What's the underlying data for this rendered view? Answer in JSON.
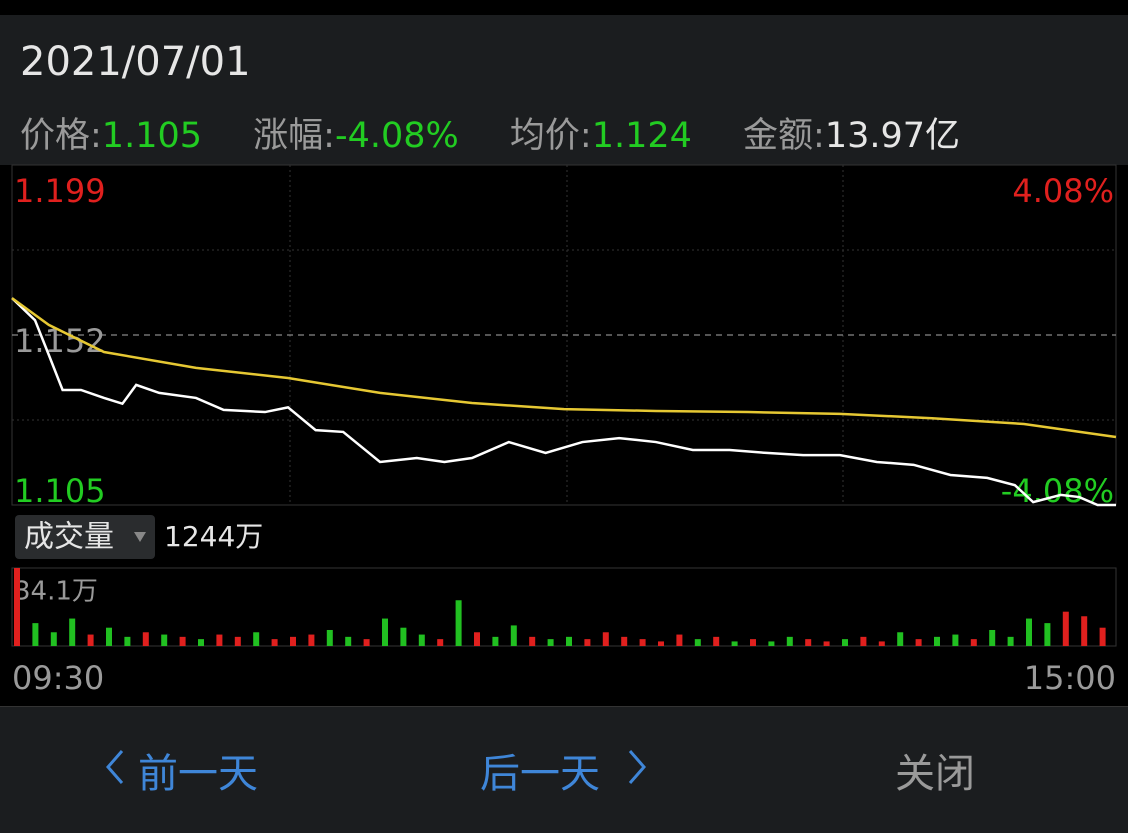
{
  "header": {
    "date": "2021/07/01",
    "price_label": "价格:",
    "price": "1.105",
    "change_label": "涨幅:",
    "change": "-4.08%",
    "avg_label": "均价:",
    "avg": "1.124",
    "amount_label": "金额:",
    "amount": "13.97亿"
  },
  "chart_data": [
    {
      "type": "line",
      "xlim": [
        0,
        240
      ],
      "ylim": [
        1.105,
        1.199
      ],
      "yticks": [
        1.199,
        1.152,
        1.105
      ],
      "y2lim": [
        -4.08,
        4.08
      ],
      "y2ticks": [
        {
          "value": 4.08,
          "label": "4.08%"
        },
        {
          "value": -4.08,
          "label": "-4.08%"
        }
      ],
      "reference": 1.152,
      "series": [
        {
          "name": "价格",
          "color": "#ffffff",
          "x": [
            0,
            5,
            8,
            11,
            15,
            20,
            24,
            27,
            32,
            40,
            46,
            55,
            60,
            66,
            72,
            80,
            88,
            94,
            100,
            108,
            116,
            124,
            132,
            140,
            148,
            156,
            164,
            172,
            180,
            188,
            196,
            204,
            212,
            218,
            222,
            228,
            232,
            236,
            240
          ],
          "values": [
            1.1622,
            1.1561,
            1.1465,
            1.1368,
            1.1368,
            1.1346,
            1.133,
            1.1382,
            1.136,
            1.1346,
            1.1313,
            1.1307,
            1.132,
            1.1257,
            1.1252,
            1.1169,
            1.118,
            1.1169,
            1.118,
            1.1224,
            1.1194,
            1.1224,
            1.1235,
            1.1224,
            1.1202,
            1.1202,
            1.1194,
            1.1188,
            1.1188,
            1.1169,
            1.1161,
            1.1133,
            1.1125,
            1.1105,
            1.1058,
            1.1078,
            1.1072,
            1.105,
            1.105
          ]
        },
        {
          "name": "均价",
          "color": "#e6c833",
          "x": [
            0,
            8,
            20,
            40,
            60,
            80,
            100,
            120,
            140,
            160,
            180,
            200,
            220,
            240
          ],
          "values": [
            1.1622,
            1.1548,
            1.1473,
            1.1429,
            1.1401,
            1.136,
            1.1332,
            1.1315,
            1.131,
            1.1307,
            1.1302,
            1.129,
            1.1274,
            1.1238
          ]
        }
      ]
    },
    {
      "type": "bar",
      "selector": "成交量",
      "total": "1244万",
      "xlim": [
        0,
        240
      ],
      "xticks": [
        {
          "value": 0,
          "label": "09:30"
        },
        {
          "value": 240,
          "label": "15:00"
        }
      ],
      "ylim": [
        0,
        34.1
      ],
      "yticks": [
        {
          "value": 34.1,
          "label": "34.1万"
        }
      ],
      "up_color": "#e0201e",
      "down_color": "#21c021",
      "x": [
        0,
        4,
        8,
        12,
        16,
        20,
        24,
        28,
        32,
        36,
        40,
        44,
        48,
        52,
        56,
        60,
        64,
        68,
        72,
        76,
        80,
        84,
        88,
        92,
        96,
        100,
        104,
        108,
        112,
        116,
        120,
        124,
        128,
        132,
        136,
        140,
        144,
        148,
        152,
        156,
        160,
        164,
        168,
        172,
        176,
        180,
        184,
        188,
        192,
        196,
        200,
        204,
        208,
        212,
        216,
        220,
        224,
        228,
        232,
        236
      ],
      "values": [
        34.1,
        10,
        6,
        12,
        5,
        8,
        4,
        6,
        5,
        4,
        3,
        5,
        4,
        6,
        3,
        4,
        5,
        7,
        4,
        3,
        12,
        8,
        5,
        3,
        20,
        6,
        4,
        9,
        4,
        3,
        4,
        3,
        6,
        4,
        3,
        2,
        5,
        3,
        4,
        2,
        3,
        2,
        4,
        3,
        2,
        3,
        4,
        2,
        6,
        3,
        4,
        5,
        3,
        7,
        4,
        12,
        10,
        15,
        13,
        8
      ],
      "up": [
        true,
        false,
        false,
        false,
        true,
        false,
        false,
        true,
        false,
        true,
        false,
        true,
        true,
        false,
        true,
        true,
        true,
        false,
        false,
        true,
        false,
        false,
        false,
        true,
        false,
        true,
        false,
        false,
        true,
        false,
        false,
        true,
        true,
        true,
        true,
        true,
        true,
        false,
        true,
        false,
        true,
        false,
        false,
        true,
        true,
        false,
        true,
        true,
        false,
        true,
        false,
        false,
        true,
        false,
        false,
        false,
        false,
        true,
        true,
        true
      ]
    }
  ],
  "footer": {
    "prev": "前一天",
    "next": "后一天",
    "close": "关闭"
  }
}
